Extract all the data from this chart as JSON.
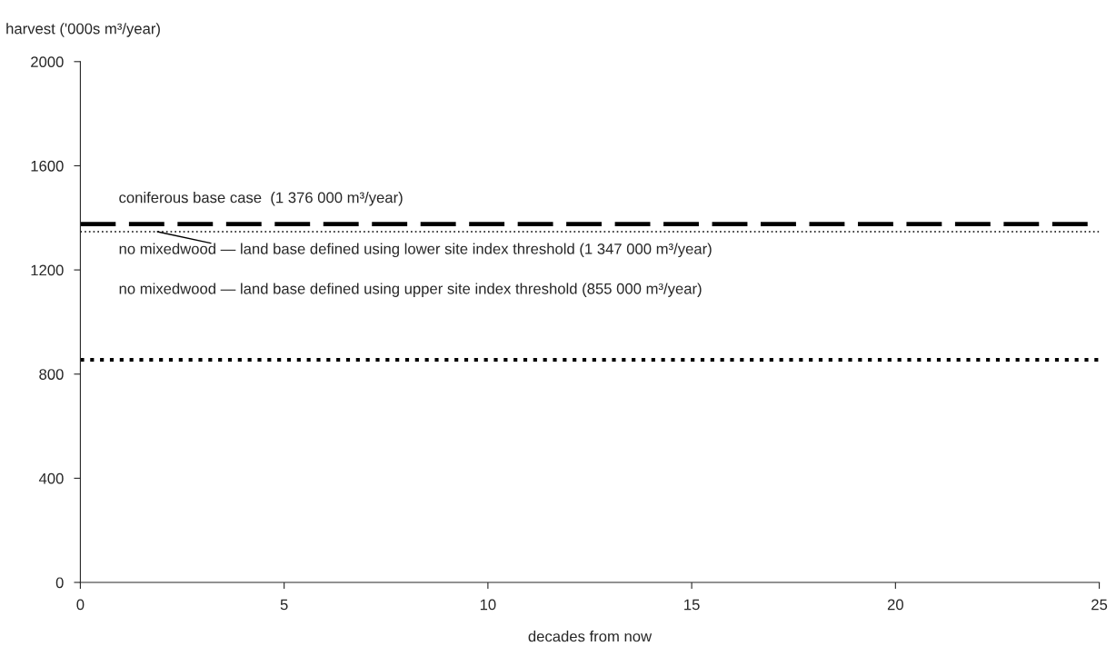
{
  "chart_data": {
    "type": "line",
    "xlabel": "decades from now",
    "ylabel": "harvest ('000s m³/year)",
    "x": [
      0,
      25
    ],
    "series": [
      {
        "color": "#000000",
        "line_style": "dashed",
        "values": [
          1376,
          1376
        ]
      },
      {
        "color": "#000000",
        "line_style": "dotted",
        "values": [
          1347,
          1347
        ]
      },
      {
        "color": "#000000",
        "line_style": "dotted",
        "values": [
          855,
          855
        ]
      }
    ],
    "annotations": [
      "coniferous base case  (1 376 000 m³/year)",
      "no mixedwood — land base defined using lower site index threshold (1 347 000 m³/year)",
      "no mixedwood — land base defined using upper site index threshold (855 000 m³/year)"
    ],
    "xlim": [
      0,
      25
    ],
    "xticks": [
      0,
      5,
      10,
      15,
      20,
      25
    ],
    "ylim": [
      0,
      2000
    ],
    "yticks": [
      0,
      400,
      800,
      1200,
      1600,
      2000
    ],
    "grid": false,
    "legend": false,
    "marker": "none"
  }
}
